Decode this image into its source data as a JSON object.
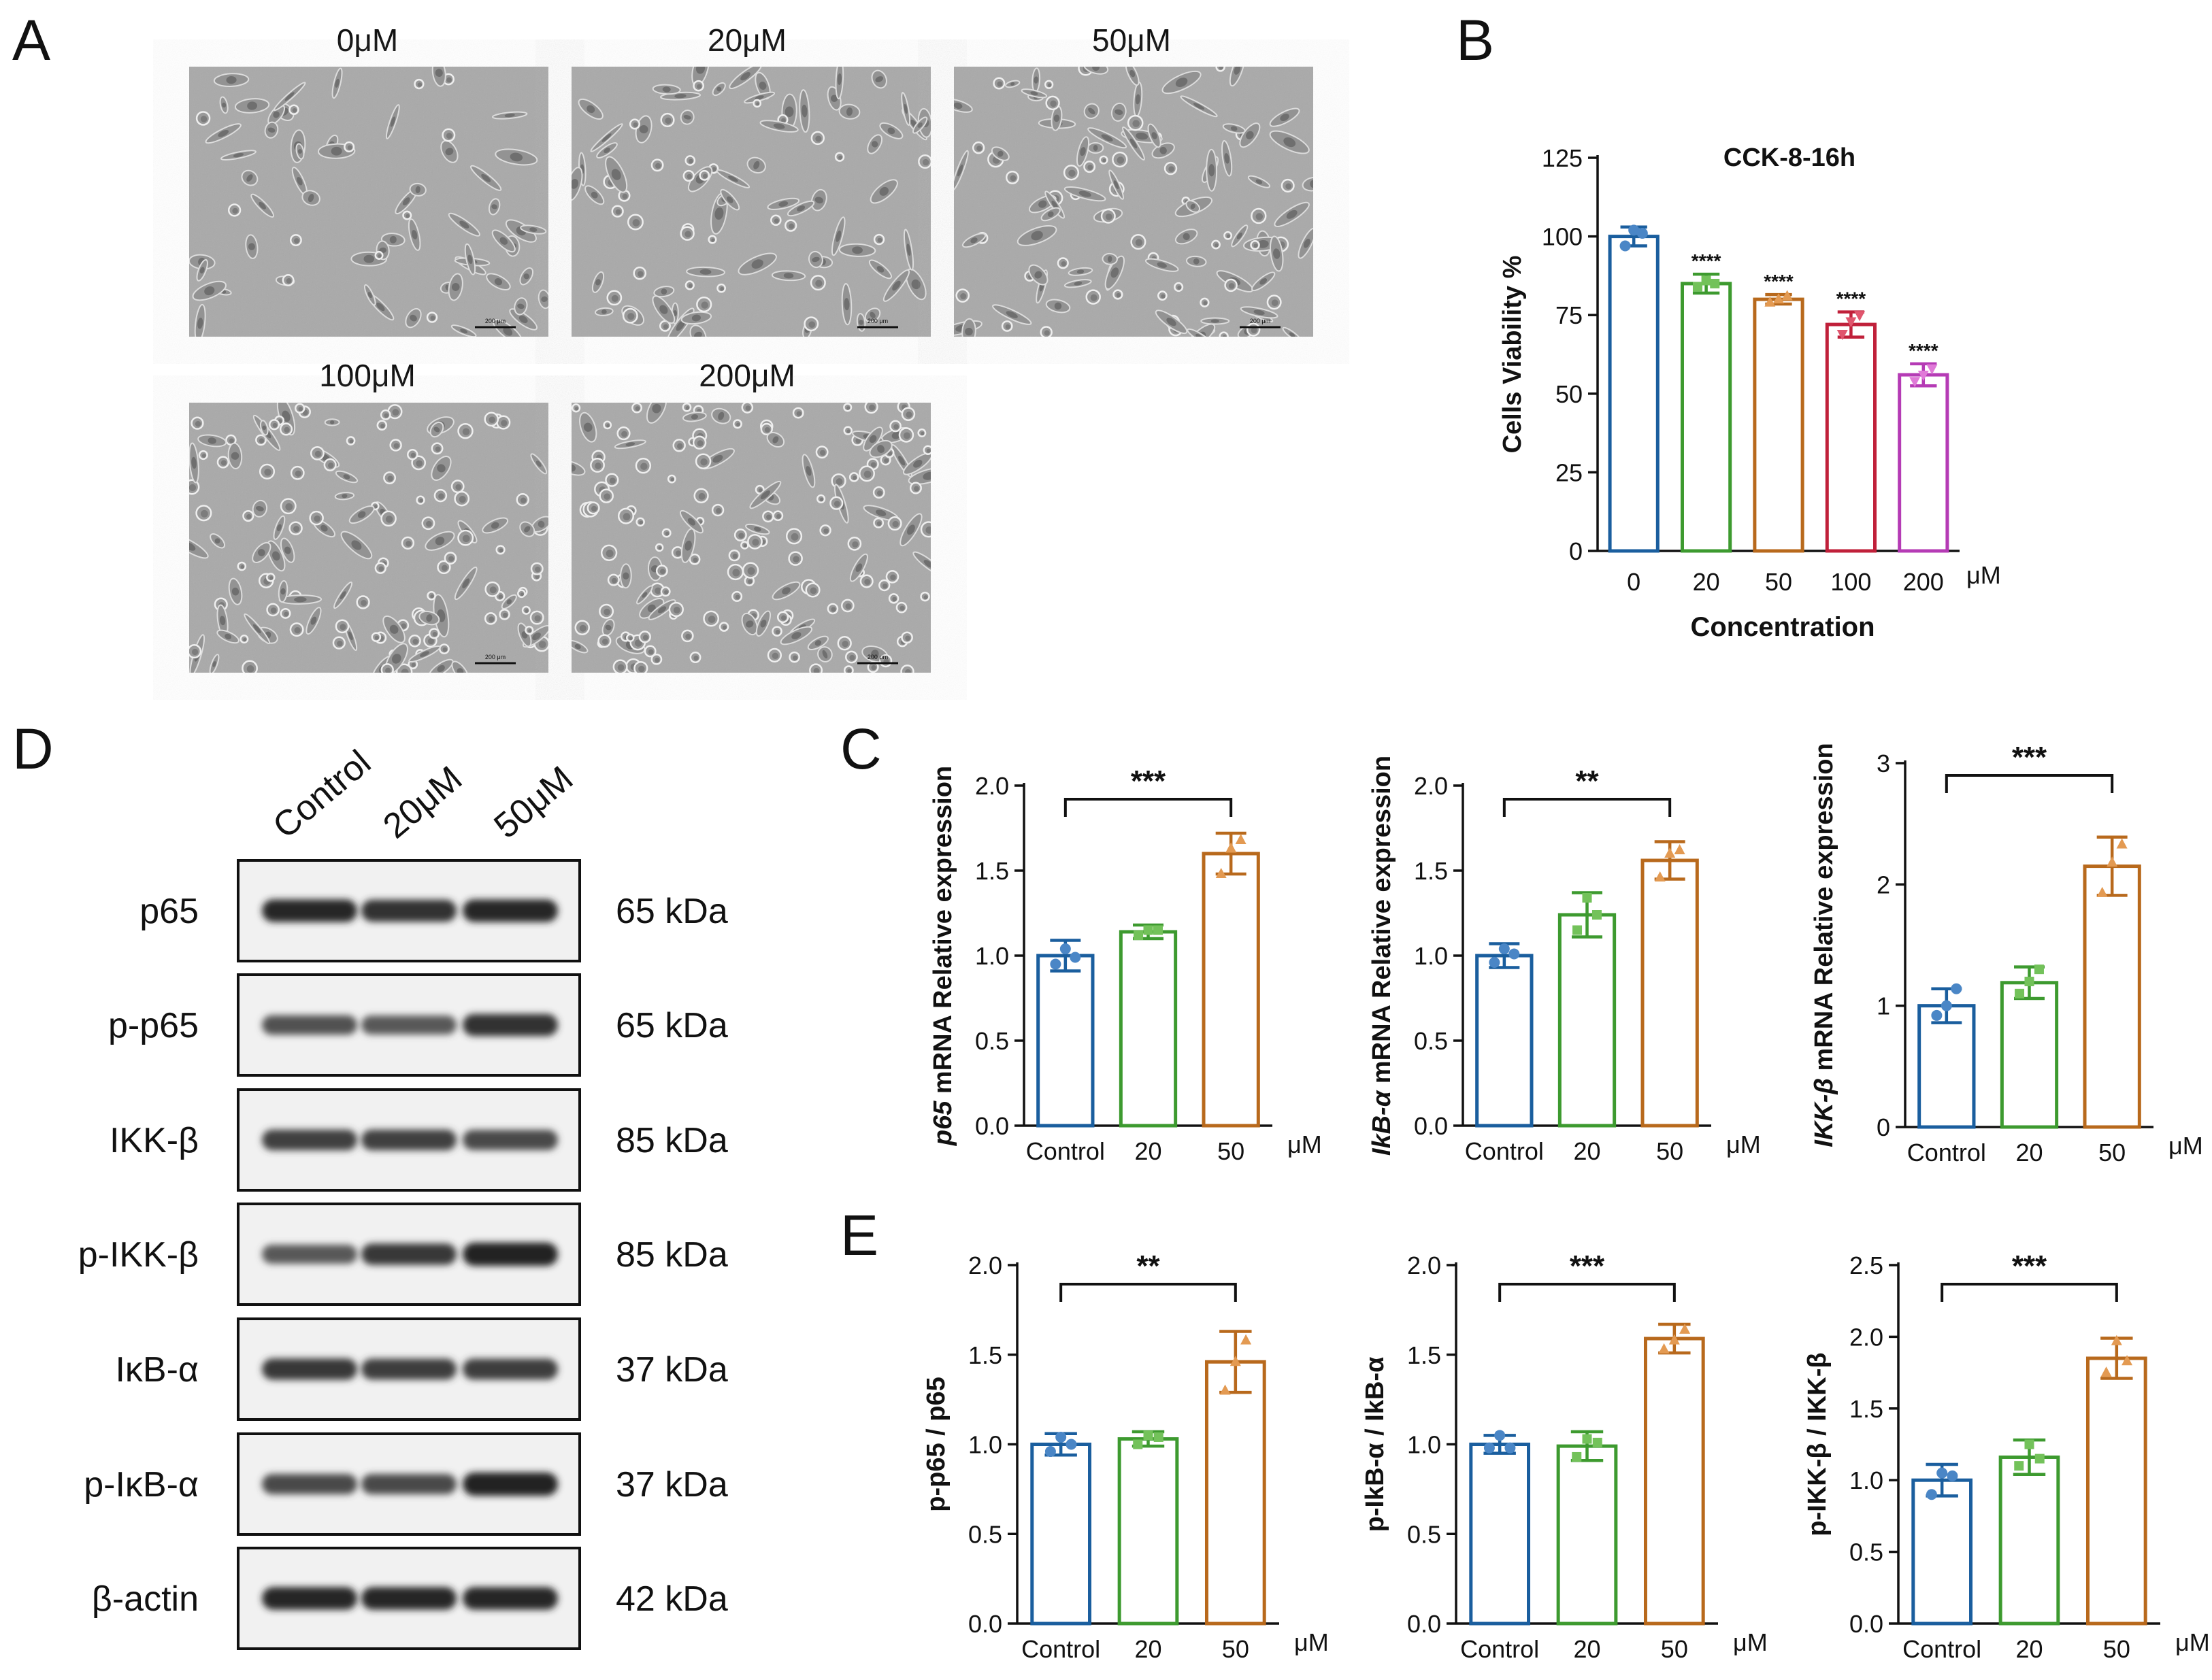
{
  "panels": {
    "a": "A",
    "b": "B",
    "c": "C",
    "d": "D",
    "e": "E"
  },
  "micro": {
    "labels": [
      "0μM",
      "20μM",
      "50μM",
      "100μM",
      "200μM"
    ],
    "scale_bar": "200 μm"
  },
  "colors": {
    "c0": "#1a5e9e",
    "c20": "#3d9a2f",
    "c50": "#b8691c",
    "c100": "#c0203a",
    "c200": "#b53bb5",
    "dot0": "#4a86c6",
    "dot20": "#73c25a",
    "dot50": "#e39a52",
    "dot100": "#e0566e",
    "dot200": "#e07ad8"
  },
  "unit": "μM",
  "western": {
    "columns": [
      "Control",
      "20μM",
      "50μM"
    ],
    "rows": [
      {
        "protein": "p65",
        "size": "65 kDa",
        "intensity": [
          0.85,
          0.8,
          0.85
        ]
      },
      {
        "protein": "p-p65",
        "size": "65 kDa",
        "intensity": [
          0.6,
          0.55,
          0.8
        ]
      },
      {
        "protein": "IKK-β",
        "size": "85 kDa",
        "intensity": [
          0.7,
          0.7,
          0.65
        ]
      },
      {
        "protein": "p-IKK-β",
        "size": "85 kDa",
        "intensity": [
          0.55,
          0.75,
          0.9
        ]
      },
      {
        "protein": "IκB-α",
        "size": "37 kDa",
        "intensity": [
          0.75,
          0.72,
          0.72
        ]
      },
      {
        "protein": "p-IκB-α",
        "size": "37 kDa",
        "intensity": [
          0.65,
          0.65,
          0.9
        ]
      },
      {
        "protein": "β-actin",
        "size": "42 kDa",
        "intensity": [
          0.85,
          0.85,
          0.85
        ]
      }
    ]
  },
  "chart_data": [
    {
      "id": "B",
      "type": "bar",
      "title": "CCK-8-16h",
      "xlabel": "Concentration",
      "ylabel": "Cells Viability %",
      "unit": "μM",
      "ylim": [
        0,
        125
      ],
      "yticks": [
        0,
        25,
        50,
        75,
        100,
        125
      ],
      "categories": [
        "0",
        "20",
        "50",
        "100",
        "200"
      ],
      "values": [
        100,
        85,
        80,
        72,
        56
      ],
      "errors": [
        3,
        3,
        1.5,
        4,
        3.5
      ],
      "points": [
        [
          97,
          102,
          101
        ],
        [
          84,
          86,
          85
        ],
        [
          79,
          80,
          81
        ],
        [
          69,
          73,
          75
        ],
        [
          54,
          56,
          58
        ]
      ],
      "significance": [
        "",
        "****",
        "****",
        "****",
        "****"
      ]
    },
    {
      "id": "C1",
      "type": "bar",
      "ylabel_italic": "p65",
      "ylabel": " mRNA Relative expression",
      "ylim": [
        0,
        2.0
      ],
      "yticks": [
        "0.0",
        "0.5",
        "1.0",
        "1.5",
        "2.0"
      ],
      "categories": [
        "Control",
        "20",
        "50"
      ],
      "values": [
        1.0,
        1.14,
        1.6
      ],
      "errors": [
        0.09,
        0.04,
        0.12
      ],
      "points": [
        [
          0.95,
          1.04,
          0.99
        ],
        [
          1.12,
          1.15,
          1.15
        ],
        [
          1.48,
          1.63,
          1.68
        ]
      ],
      "bracket": "***",
      "unit": "μM"
    },
    {
      "id": "C2",
      "type": "bar",
      "ylabel_italic": "IkB-α",
      "ylabel": " mRNA Relative expression",
      "ylim": [
        0,
        2.0
      ],
      "yticks": [
        "0.0",
        "0.5",
        "1.0",
        "1.5",
        "2.0"
      ],
      "categories": [
        "Control",
        "20",
        "50"
      ],
      "values": [
        1.0,
        1.24,
        1.56
      ],
      "errors": [
        0.07,
        0.13,
        0.11
      ],
      "points": [
        [
          0.96,
          1.04,
          1.01
        ],
        [
          1.15,
          1.34,
          1.24
        ],
        [
          1.46,
          1.6,
          1.62
        ]
      ],
      "bracket": "**",
      "unit": "μM"
    },
    {
      "id": "C3",
      "type": "bar",
      "ylabel_italic": "IKK-β",
      "ylabel": " mRNA Relative expression",
      "ylim": [
        0,
        3
      ],
      "yticks": [
        "0",
        "1",
        "2",
        "3"
      ],
      "categories": [
        "Control",
        "20",
        "50"
      ],
      "values": [
        1.0,
        1.19,
        2.15
      ],
      "errors": [
        0.14,
        0.13,
        0.24
      ],
      "points": [
        [
          0.92,
          1.0,
          1.14
        ],
        [
          1.1,
          1.2,
          1.3
        ],
        [
          1.93,
          2.18,
          2.33
        ]
      ],
      "bracket": "***",
      "unit": "μM"
    },
    {
      "id": "E1",
      "type": "bar",
      "ylabel": "p-p65 / p65",
      "ylim": [
        0,
        2.0
      ],
      "yticks": [
        "0.0",
        "0.5",
        "1.0",
        "1.5",
        "2.0"
      ],
      "categories": [
        "Control",
        "20",
        "50"
      ],
      "values": [
        1.0,
        1.03,
        1.46
      ],
      "errors": [
        0.06,
        0.04,
        0.17
      ],
      "points": [
        [
          0.96,
          1.04,
          1.0
        ],
        [
          1.0,
          1.05,
          1.04
        ],
        [
          1.3,
          1.46,
          1.58
        ]
      ],
      "bracket": "**",
      "unit": "μM"
    },
    {
      "id": "E2",
      "type": "bar",
      "ylabel": "p-IkB-α / IkB-α",
      "ylim": [
        0,
        2.0
      ],
      "yticks": [
        "0.0",
        "0.5",
        "1.0",
        "1.5",
        "2.0"
      ],
      "categories": [
        "Control",
        "20",
        "50"
      ],
      "values": [
        1.0,
        0.99,
        1.59
      ],
      "errors": [
        0.05,
        0.08,
        0.08
      ],
      "points": [
        [
          0.98,
          1.05,
          0.98
        ],
        [
          0.93,
          1.03,
          1.01
        ],
        [
          1.53,
          1.58,
          1.64
        ]
      ],
      "bracket": "***",
      "unit": "μM"
    },
    {
      "id": "E3",
      "type": "bar",
      "ylabel": "p-IKK-β / IKK-β",
      "ylim": [
        0,
        2.5
      ],
      "yticks": [
        "0.0",
        "0.5",
        "1.0",
        "1.5",
        "2.0",
        "2.5"
      ],
      "categories": [
        "Control",
        "20",
        "50"
      ],
      "values": [
        1.0,
        1.16,
        1.85
      ],
      "errors": [
        0.11,
        0.12,
        0.14
      ],
      "points": [
        [
          0.9,
          1.05,
          1.03
        ],
        [
          1.1,
          1.25,
          1.15
        ],
        [
          1.75,
          1.97,
          1.83
        ]
      ],
      "bracket": "***",
      "unit": "μM"
    }
  ]
}
